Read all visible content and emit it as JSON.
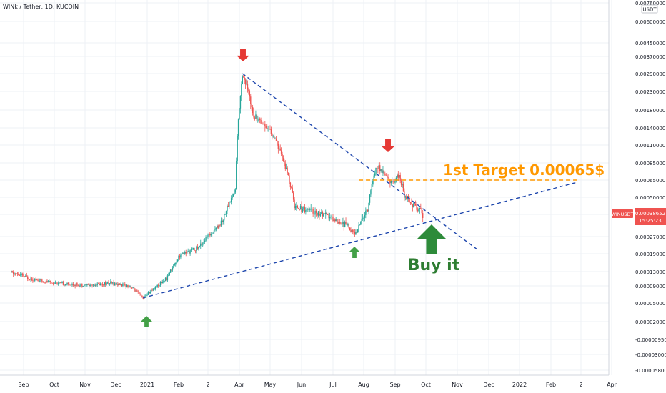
{
  "header": {
    "symbol_title": "WINk / Tether, 1D, KUCOIN",
    "currency": "USDT"
  },
  "price_label": {
    "symbol": "WINUSDT",
    "price": "0.00038652",
    "countdown": "15:25:23"
  },
  "annotations": {
    "target": "1st Target 0.00065$",
    "buy": "Buy it"
  },
  "colors": {
    "up": "#26a69a",
    "down": "#ef5350",
    "trendline": "#1f47ad",
    "target_line": "#ff9800",
    "target_text": "#ff9800",
    "buy_text": "#2e7d32",
    "arrow_up": "#43a047",
    "arrow_down": "#e53935",
    "price_box": "#ef5350"
  },
  "chart_data": {
    "type": "candlestick",
    "x_tick_labels": [
      "Sep",
      "Oct",
      "Nov",
      "Dec",
      "2021",
      "Feb",
      "2",
      "Apr",
      "May",
      "Jun",
      "Jul",
      "Aug",
      "Sep",
      "Oct",
      "Nov",
      "Dec",
      "2022",
      "Feb",
      "2",
      "Apr"
    ],
    "y_tick_labels": [
      "0.00760000",
      "0.00600000",
      "0.00450000",
      "0.00370000",
      "0.00290000",
      "0.00230000",
      "0.00180000",
      "0.00140000",
      "0.00110000",
      "0.00085000",
      "0.00065000",
      "0.00050000",
      "0.00038652",
      "0.00027000",
      "0.00019000",
      "0.00013000",
      "0.00009000",
      "0.00005000",
      "0.00002000",
      "-0.00000950",
      "-0.00003000",
      "-0.00005800"
    ],
    "price_path": [
      {
        "x": "2020-08-20",
        "price": 0.000127
      },
      {
        "x": "2020-09-15",
        "price": 0.000105
      },
      {
        "x": "2020-10-10",
        "price": 9.5e-05
      },
      {
        "x": "2020-11-05",
        "price": 9.2e-05
      },
      {
        "x": "2020-11-25",
        "price": 9.8e-05
      },
      {
        "x": "2020-12-15",
        "price": 9e-05
      },
      {
        "x": "2020-12-28",
        "price": 6.2e-05
      },
      {
        "x": "2021-01-20",
        "price": 0.00011
      },
      {
        "x": "2021-02-01",
        "price": 0.00018
      },
      {
        "x": "2021-02-20",
        "price": 0.00022
      },
      {
        "x": "2021-03-15",
        "price": 0.00035
      },
      {
        "x": "2021-03-28",
        "price": 0.00056
      },
      {
        "x": "2021-04-04",
        "price": 0.0029
      },
      {
        "x": "2021-04-15",
        "price": 0.0017
      },
      {
        "x": "2021-05-01",
        "price": 0.00135
      },
      {
        "x": "2021-05-15",
        "price": 0.00085
      },
      {
        "x": "2021-05-25",
        "price": 0.00044
      },
      {
        "x": "2021-06-20",
        "price": 0.00039
      },
      {
        "x": "2021-07-15",
        "price": 0.00033
      },
      {
        "x": "2021-07-23",
        "price": 0.00028
      },
      {
        "x": "2021-08-05",
        "price": 0.00042
      },
      {
        "x": "2021-08-14",
        "price": 0.00082
      },
      {
        "x": "2021-08-28",
        "price": 0.00062
      },
      {
        "x": "2021-09-05",
        "price": 0.0007
      },
      {
        "x": "2021-09-10",
        "price": 0.00052
      },
      {
        "x": "2021-09-28",
        "price": 0.000387
      }
    ],
    "trendlines": [
      {
        "name": "",
        "from": {
          "x": "2021-04-04",
          "price": 0.0029
        },
        "to": {
          "x": "2021-11-20",
          "price": 0.00021
        }
      },
      {
        "name": "",
        "from": {
          "x": "2020-12-28",
          "price": 6.2e-05
        },
        "to": {
          "x": "2022-02-25",
          "price": 0.00063
        }
      }
    ],
    "target_line": {
      "price": 0.00065,
      "from": "2021-07-27",
      "to": "2022-02-25"
    },
    "ylabel": "",
    "xlabel": "",
    "grid": true
  }
}
